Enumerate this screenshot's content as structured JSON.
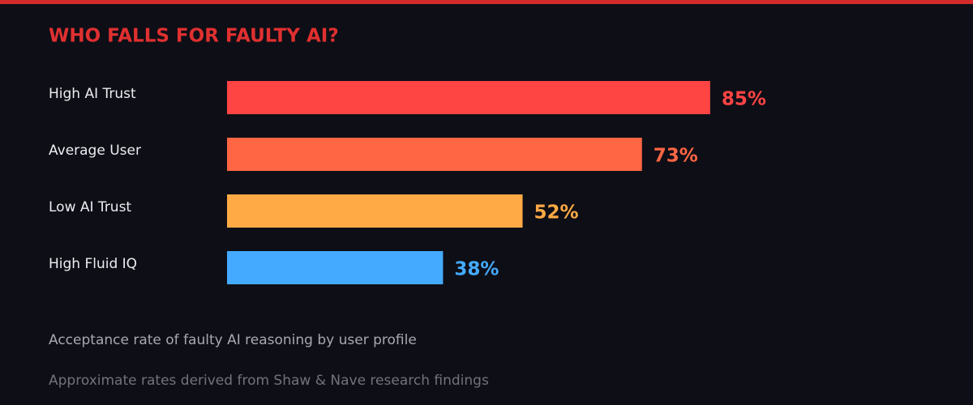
{
  "chart_data": {
    "type": "hbar",
    "title": "WHO FALLS FOR FAULTY AI?",
    "categories": [
      "High AI Trust",
      "Average User",
      "Low AI Trust",
      "High Fluid IQ"
    ],
    "values": [
      85,
      73,
      52,
      38
    ],
    "value_labels": [
      "85%",
      "73%",
      "52%",
      "38%"
    ],
    "colors": [
      "#ff4444",
      "#ff6644",
      "#ffaa44",
      "#44aaff"
    ],
    "xlim": [
      0,
      100
    ],
    "caption": "Acceptance rate of faulty AI reasoning by user profile",
    "footnote": "Approximate rates derived from Shaw & Nave research findings"
  }
}
